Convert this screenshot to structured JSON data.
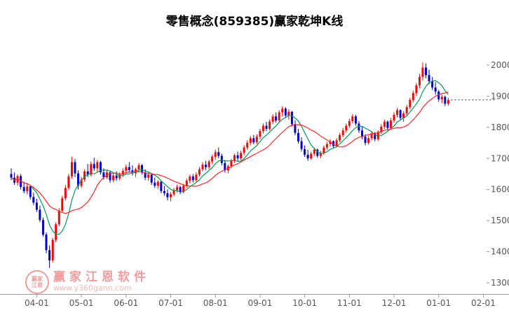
{
  "title": "零售概念(859385)赢家乾坤K线",
  "watermark": {
    "logo_line1": "赢家",
    "logo_line2": "江恩",
    "brand": "赢家江恩软件",
    "url": "www.y360gann.com"
  },
  "chart_data": {
    "type": "candlestick",
    "title": "零售概念(859385)赢家乾坤K线",
    "xlabel": "",
    "ylabel": "",
    "ylim": [
      1300,
      2050
    ],
    "grid": false,
    "legend": "none",
    "yticks": [
      1300,
      1400,
      1500,
      1600,
      1700,
      1800,
      1900,
      2000
    ],
    "x_ticks": [
      {
        "label": "04-01",
        "index": 8
      },
      {
        "label": "05-01",
        "index": 22
      },
      {
        "label": "06-01",
        "index": 36
      },
      {
        "label": "07-01",
        "index": 50
      },
      {
        "label": "08-01",
        "index": 64
      },
      {
        "label": "09-01",
        "index": 78
      },
      {
        "label": "10-01",
        "index": 92
      },
      {
        "label": "11-01",
        "index": 106
      },
      {
        "label": "12-01",
        "index": 120
      },
      {
        "label": "01-01",
        "index": 134
      },
      {
        "label": "02-01",
        "index": 148
      }
    ],
    "up_color": "#ff0000",
    "down_color": "#0000cc",
    "ma_short": {
      "period": 7,
      "color": "#009955"
    },
    "ma_long": {
      "period": 15,
      "color": "#ff2a2a"
    },
    "last_close": 1888,
    "last_close_line_color": "#333333",
    "axis_color": "#999999",
    "label_color": "#555555",
    "candles": [
      [
        1650,
        1668,
        1630,
        1638
      ],
      [
        1638,
        1655,
        1615,
        1622
      ],
      [
        1622,
        1648,
        1612,
        1643
      ],
      [
        1643,
        1650,
        1600,
        1608
      ],
      [
        1608,
        1625,
        1588,
        1595
      ],
      [
        1595,
        1618,
        1585,
        1610
      ],
      [
        1610,
        1612,
        1568,
        1576
      ],
      [
        1576,
        1590,
        1550,
        1558
      ],
      [
        1558,
        1570,
        1528,
        1535
      ],
      [
        1535,
        1548,
        1495,
        1502
      ],
      [
        1502,
        1510,
        1448,
        1455
      ],
      [
        1455,
        1462,
        1395,
        1405
      ],
      [
        1405,
        1420,
        1348,
        1372
      ],
      [
        1372,
        1445,
        1365,
        1438
      ],
      [
        1438,
        1495,
        1430,
        1488
      ],
      [
        1488,
        1540,
        1482,
        1532
      ],
      [
        1532,
        1580,
        1525,
        1572
      ],
      [
        1572,
        1615,
        1565,
        1605
      ],
      [
        1605,
        1650,
        1598,
        1642
      ],
      [
        1642,
        1705,
        1635,
        1688
      ],
      [
        1688,
        1698,
        1640,
        1652
      ],
      [
        1652,
        1662,
        1600,
        1612
      ],
      [
        1612,
        1640,
        1605,
        1632
      ],
      [
        1632,
        1665,
        1625,
        1658
      ],
      [
        1658,
        1682,
        1640,
        1648
      ],
      [
        1648,
        1690,
        1642,
        1682
      ],
      [
        1682,
        1702,
        1660,
        1668
      ],
      [
        1668,
        1695,
        1655,
        1688
      ],
      [
        1688,
        1692,
        1648,
        1655
      ],
      [
        1655,
        1668,
        1632,
        1640
      ],
      [
        1640,
        1662,
        1635,
        1655
      ],
      [
        1655,
        1660,
        1622,
        1630
      ],
      [
        1630,
        1652,
        1624,
        1645
      ],
      [
        1645,
        1658,
        1628,
        1636
      ],
      [
        1636,
        1655,
        1630,
        1648
      ],
      [
        1648,
        1668,
        1640,
        1660
      ],
      [
        1660,
        1680,
        1650,
        1672
      ],
      [
        1672,
        1688,
        1655,
        1662
      ],
      [
        1662,
        1678,
        1645,
        1652
      ],
      [
        1652,
        1670,
        1640,
        1665
      ],
      [
        1665,
        1685,
        1658,
        1678
      ],
      [
        1678,
        1682,
        1648,
        1655
      ],
      [
        1655,
        1665,
        1630,
        1638
      ],
      [
        1638,
        1655,
        1628,
        1648
      ],
      [
        1648,
        1652,
        1615,
        1622
      ],
      [
        1622,
        1638,
        1605,
        1612
      ],
      [
        1612,
        1630,
        1602,
        1625
      ],
      [
        1625,
        1628,
        1588,
        1595
      ],
      [
        1595,
        1612,
        1580,
        1588
      ],
      [
        1588,
        1600,
        1565,
        1575
      ],
      [
        1575,
        1592,
        1562,
        1585
      ],
      [
        1585,
        1605,
        1578,
        1598
      ],
      [
        1598,
        1615,
        1590,
        1608
      ],
      [
        1608,
        1612,
        1585,
        1592
      ],
      [
        1592,
        1618,
        1588,
        1612
      ],
      [
        1612,
        1635,
        1605,
        1628
      ],
      [
        1628,
        1648,
        1620,
        1642
      ],
      [
        1642,
        1650,
        1622,
        1630
      ],
      [
        1630,
        1655,
        1625,
        1648
      ],
      [
        1648,
        1672,
        1642,
        1665
      ],
      [
        1665,
        1688,
        1658,
        1680
      ],
      [
        1680,
        1692,
        1662,
        1672
      ],
      [
        1672,
        1695,
        1665,
        1690
      ],
      [
        1690,
        1712,
        1682,
        1705
      ],
      [
        1705,
        1728,
        1695,
        1720
      ],
      [
        1720,
        1735,
        1700,
        1708
      ],
      [
        1708,
        1715,
        1678,
        1685
      ],
      [
        1685,
        1695,
        1655,
        1662
      ],
      [
        1662,
        1680,
        1652,
        1675
      ],
      [
        1675,
        1698,
        1668,
        1692
      ],
      [
        1692,
        1715,
        1685,
        1710
      ],
      [
        1710,
        1722,
        1692,
        1700
      ],
      [
        1700,
        1725,
        1695,
        1718
      ],
      [
        1718,
        1742,
        1710,
        1735
      ],
      [
        1735,
        1758,
        1728,
        1750
      ],
      [
        1750,
        1772,
        1742,
        1765
      ],
      [
        1765,
        1775,
        1745,
        1752
      ],
      [
        1752,
        1778,
        1746,
        1770
      ],
      [
        1770,
        1795,
        1762,
        1788
      ],
      [
        1788,
        1812,
        1780,
        1805
      ],
      [
        1805,
        1818,
        1788,
        1795
      ],
      [
        1795,
        1825,
        1790,
        1818
      ],
      [
        1818,
        1842,
        1810,
        1835
      ],
      [
        1835,
        1848,
        1815,
        1822
      ],
      [
        1822,
        1855,
        1816,
        1848
      ],
      [
        1848,
        1868,
        1835,
        1860
      ],
      [
        1860,
        1865,
        1830,
        1838
      ],
      [
        1838,
        1858,
        1825,
        1850
      ],
      [
        1850,
        1852,
        1802,
        1810
      ],
      [
        1810,
        1822,
        1775,
        1782
      ],
      [
        1782,
        1795,
        1748,
        1755
      ],
      [
        1755,
        1768,
        1722,
        1730
      ],
      [
        1730,
        1742,
        1705,
        1712
      ],
      [
        1712,
        1728,
        1692,
        1700
      ],
      [
        1700,
        1722,
        1695,
        1715
      ],
      [
        1715,
        1735,
        1708,
        1728
      ],
      [
        1728,
        1732,
        1702,
        1708
      ],
      [
        1708,
        1725,
        1700,
        1718
      ],
      [
        1718,
        1742,
        1712,
        1735
      ],
      [
        1735,
        1752,
        1728,
        1746
      ],
      [
        1746,
        1762,
        1738,
        1755
      ],
      [
        1755,
        1758,
        1732,
        1740
      ],
      [
        1740,
        1765,
        1735,
        1758
      ],
      [
        1758,
        1782,
        1752,
        1775
      ],
      [
        1775,
        1798,
        1768,
        1790
      ],
      [
        1790,
        1812,
        1782,
        1805
      ],
      [
        1805,
        1828,
        1798,
        1820
      ],
      [
        1820,
        1842,
        1812,
        1835
      ],
      [
        1835,
        1840,
        1805,
        1812
      ],
      [
        1812,
        1820,
        1782,
        1790
      ],
      [
        1790,
        1802,
        1762,
        1770
      ],
      [
        1770,
        1778,
        1742,
        1750
      ],
      [
        1750,
        1772,
        1745,
        1765
      ],
      [
        1765,
        1788,
        1758,
        1780
      ],
      [
        1780,
        1785,
        1755,
        1762
      ],
      [
        1762,
        1790,
        1756,
        1785
      ],
      [
        1785,
        1810,
        1778,
        1802
      ],
      [
        1802,
        1825,
        1795,
        1818
      ],
      [
        1818,
        1822,
        1790,
        1798
      ],
      [
        1798,
        1830,
        1792,
        1822
      ],
      [
        1822,
        1848,
        1815,
        1840
      ],
      [
        1840,
        1862,
        1832,
        1855
      ],
      [
        1855,
        1858,
        1822,
        1830
      ],
      [
        1830,
        1852,
        1818,
        1845
      ],
      [
        1845,
        1872,
        1838,
        1865
      ],
      [
        1865,
        1895,
        1858,
        1888
      ],
      [
        1888,
        1918,
        1880,
        1910
      ],
      [
        1910,
        1942,
        1900,
        1935
      ],
      [
        1935,
        1972,
        1925,
        1962
      ],
      [
        1962,
        2008,
        1950,
        1992
      ],
      [
        1992,
        2005,
        1958,
        1968
      ],
      [
        1968,
        1985,
        1938,
        1948
      ],
      [
        1948,
        1962,
        1920,
        1928
      ],
      [
        1928,
        1945,
        1905,
        1915
      ],
      [
        1915,
        1920,
        1882,
        1890
      ],
      [
        1890,
        1905,
        1878,
        1898
      ],
      [
        1898,
        1902,
        1868,
        1876
      ],
      [
        1876,
        1895,
        1870,
        1888
      ]
    ]
  }
}
